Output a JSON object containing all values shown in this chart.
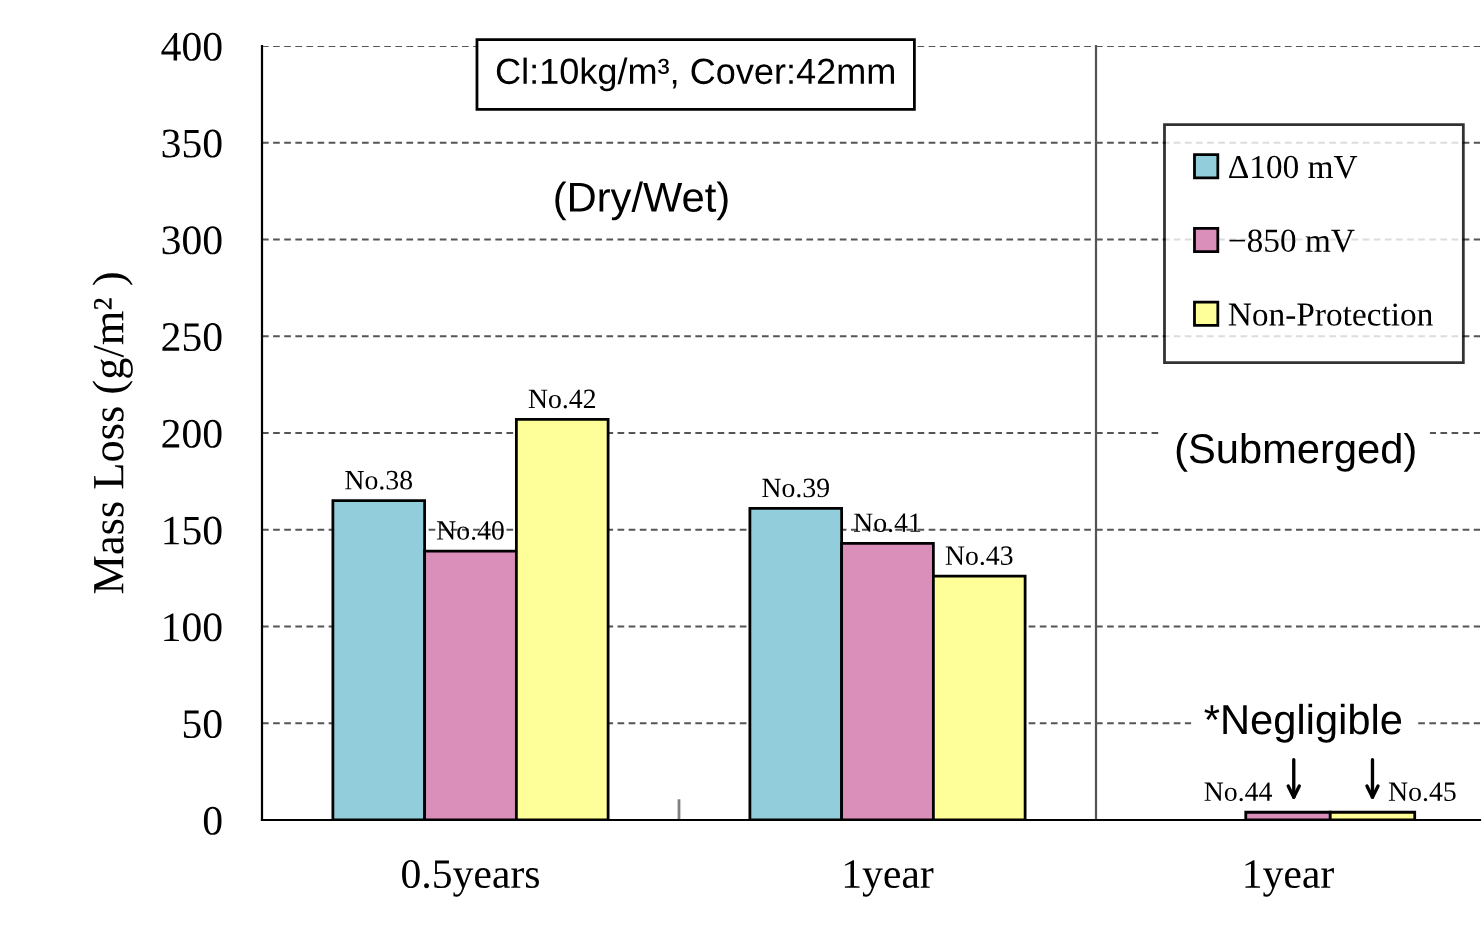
{
  "chart_data": [
    {
      "type": "bar",
      "title": "Cl:10kg/m³, Cover:42mm",
      "ylabel": "Mass Loss (g/m² )",
      "categories": [
        "0.5years",
        "1year"
      ],
      "series": [
        {
          "color": "#92cddc",
          "values": [
            165,
            161
          ],
          "value_labels": [
            "No.38",
            "No.39"
          ]
        },
        {
          "color": "#da8fbb",
          "values": [
            139,
            143
          ],
          "value_labels": [
            "No.40",
            "No.41"
          ]
        },
        {
          "color": "#ffff99",
          "values": [
            207,
            126
          ],
          "value_labels": [
            "No.42",
            "No.43"
          ]
        }
      ],
      "ylim": [
        0,
        400
      ],
      "yticks": [
        0,
        50,
        100,
        150,
        200,
        250,
        300,
        350,
        400
      ],
      "grid": "y",
      "annotations": [
        "(Dry/Wet)"
      ]
    },
    {
      "type": "bar",
      "categories": [
        "1year"
      ],
      "series": [
        {
          "name": "Δ100 mV",
          "color": "#92cddc",
          "values": [
            null
          ]
        },
        {
          "name": "−850 mV",
          "color": "#da8fbb",
          "values": [
            4
          ],
          "value_labels": [
            "No.44"
          ]
        },
        {
          "name": "Non-Protection",
          "color": "#ffff99",
          "values": [
            4
          ],
          "value_labels": [
            "No.45"
          ]
        }
      ],
      "ylim": [
        0,
        400
      ],
      "tick_labels": "x",
      "grid": "y",
      "legend": "top right",
      "annotations": [
        "(Submerged)",
        "*Negligible"
      ]
    }
  ]
}
